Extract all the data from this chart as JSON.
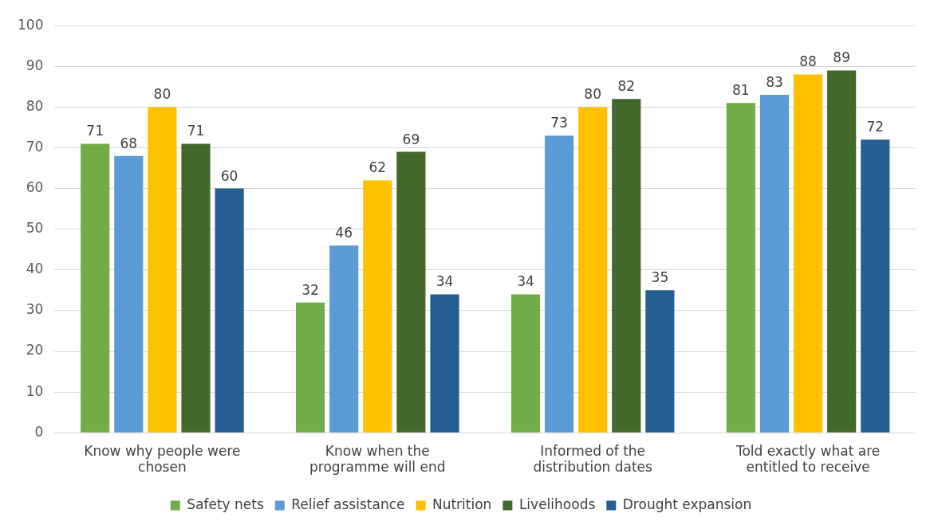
{
  "chart_data": {
    "type": "bar",
    "categories": [
      "Know why people were chosen",
      "Know when the programme will end",
      "Informed of the distribution dates",
      "Told exactly what are entitled to receive"
    ],
    "series": [
      {
        "name": "Safety nets",
        "color": "#70ad47",
        "values": [
          71,
          32,
          34,
          81
        ]
      },
      {
        "name": "Relief assistance",
        "color": "#5b9bd5",
        "values": [
          68,
          46,
          73,
          83
        ]
      },
      {
        "name": "Nutrition",
        "color": "#ffc000",
        "values": [
          80,
          62,
          80,
          88
        ]
      },
      {
        "name": "Livelihoods",
        "color": "#43682b",
        "values": [
          71,
          69,
          82,
          89
        ]
      },
      {
        "name": "Drought expansion",
        "color": "#255e91",
        "values": [
          60,
          34,
          35,
          72
        ]
      }
    ],
    "ylim": [
      0,
      100
    ],
    "yticks": [
      0,
      10,
      20,
      30,
      40,
      50,
      60,
      70,
      80,
      90,
      100
    ],
    "grid": "y",
    "legend": "bottom",
    "data_labels": true
  }
}
